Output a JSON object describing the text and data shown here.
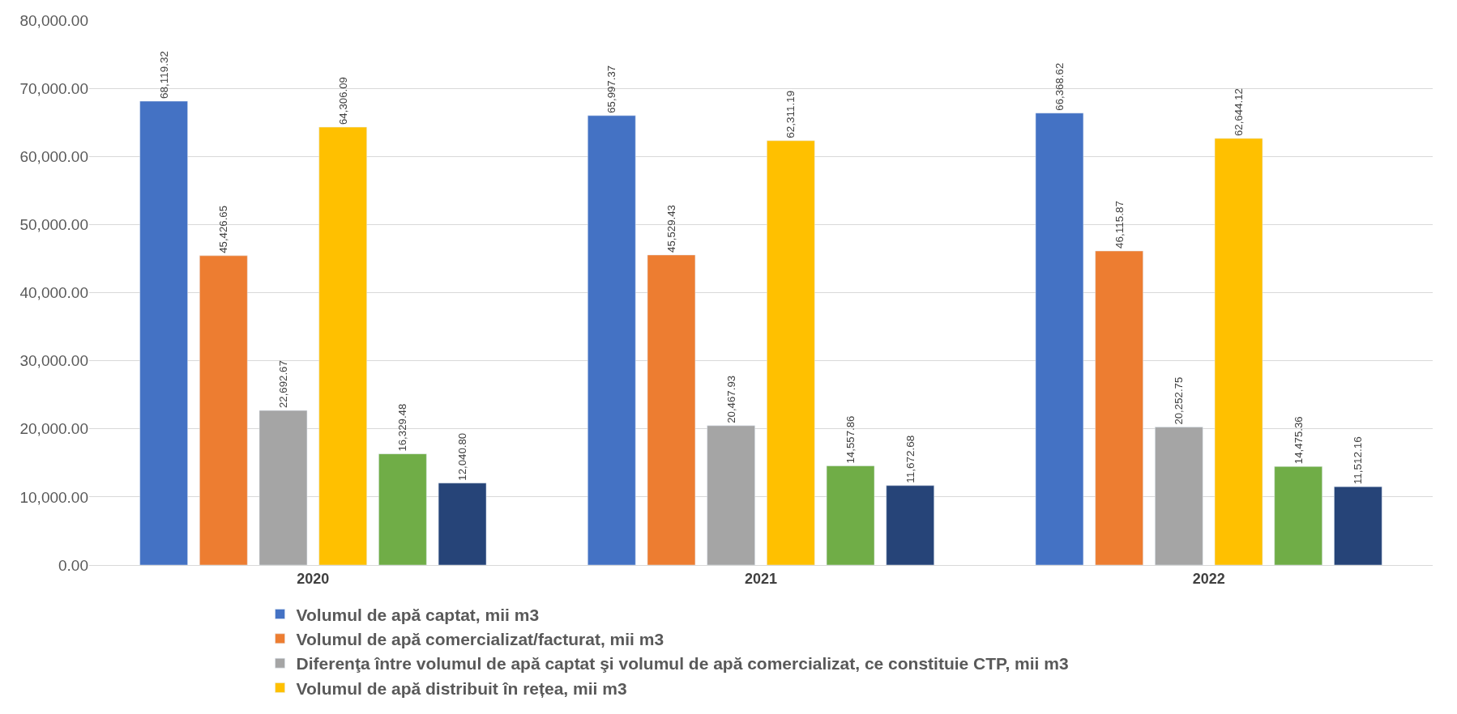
{
  "chart_data": {
    "type": "bar",
    "categories": [
      "2020",
      "2021",
      "2022"
    ],
    "series": [
      {
        "name": "Volumul de apă captat, mii m3",
        "color": "#4472c4",
        "values": [
          68119.32,
          65997.37,
          66368.62
        ],
        "value_labels": [
          "68,119.32",
          "65,997.37",
          "66,368.62"
        ]
      },
      {
        "name": "Volumul de apă comercializat/facturat, mii m3",
        "color": "#ed7d31",
        "values": [
          45426.65,
          45529.43,
          46115.87
        ],
        "value_labels": [
          "45,426.65",
          "45,529.43",
          "46,115.87"
        ]
      },
      {
        "name": "Diferenţa între volumul de apă captat şi volumul de apă comercializat, ce constituie CTP, mii m3",
        "color": "#a5a5a5",
        "values": [
          22692.67,
          20467.93,
          20252.75
        ],
        "value_labels": [
          "22,692.67",
          "20,467.93",
          "20,252.75"
        ]
      },
      {
        "name": "Volumul de apă distribuit în rețea, mii m3",
        "color": "#ffc000",
        "values": [
          64306.09,
          62311.19,
          62644.12
        ],
        "value_labels": [
          "64,306.09",
          "62,311.19",
          "62,644.12"
        ]
      },
      {
        "color": "#70ad47",
        "values": [
          16329.48,
          14557.86,
          14475.36
        ],
        "value_labels": [
          "16,329.48",
          "14,557.86",
          "14,475.36"
        ]
      },
      {
        "color": "#264478",
        "values": [
          12040.8,
          11672.68,
          11512.16
        ],
        "value_labels": [
          "12,040.80",
          "11,672.68",
          "11,512.16"
        ]
      }
    ],
    "ylim": [
      0,
      80000
    ],
    "yticks": [
      {
        "value": 0,
        "label": "0.00"
      },
      {
        "value": 10000,
        "label": "10,000.00"
      },
      {
        "value": 20000,
        "label": "20,000.00"
      },
      {
        "value": 30000,
        "label": "30,000.00"
      },
      {
        "value": 40000,
        "label": "40,000.00"
      },
      {
        "value": 50000,
        "label": "50,000.00"
      },
      {
        "value": 60000,
        "label": "60,000.00"
      },
      {
        "value": 70000,
        "label": "70,000.00"
      },
      {
        "value": 80000,
        "label": "80,000.00"
      }
    ],
    "grid": "y",
    "legend": "bottom"
  }
}
